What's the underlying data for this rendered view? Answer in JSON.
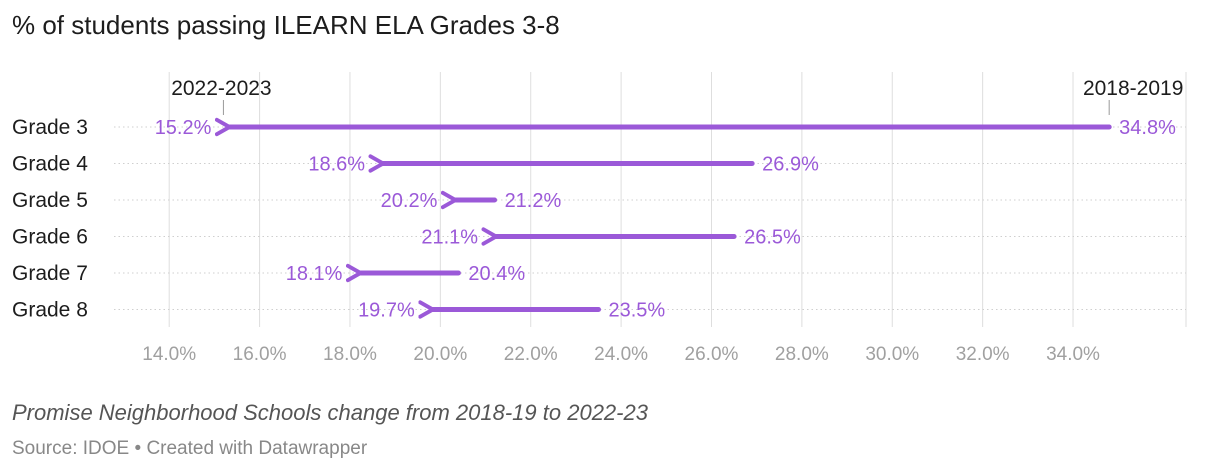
{
  "title": "% of students passing ILEARN ELA Grades 3-8",
  "subtitle": "Promise Neighborhood Schools change from 2018-19 to 2022-23",
  "source": {
    "label": "Source: IDOE",
    "separator": "•",
    "credit": "Created with Datawrapper"
  },
  "colors": {
    "arrow": "#9b59d8",
    "grid": "#dedede",
    "tick_label": "#a0a0a0",
    "row_label": "#1d1d1d"
  },
  "chart_data": {
    "type": "arrow-dot",
    "title": "% of students passing ILEARN ELA Grades 3-8",
    "series_start_label": "2018-2019",
    "series_end_label": "2022-2023",
    "categories": [
      "Grade 3",
      "Grade 4",
      "Grade 5",
      "Grade 6",
      "Grade 7",
      "Grade 8"
    ],
    "series": [
      {
        "name": "2018-2019",
        "values": [
          34.8,
          26.9,
          21.2,
          26.5,
          20.4,
          23.5
        ]
      },
      {
        "name": "2022-2023",
        "values": [
          15.2,
          18.6,
          20.2,
          21.1,
          18.1,
          19.7
        ]
      }
    ],
    "value_labels_start": [
      "34.8%",
      "26.9%",
      "21.2%",
      "26.5%",
      "20.4%",
      "23.5%"
    ],
    "value_labels_end": [
      "15.2%",
      "18.6%",
      "20.2%",
      "21.1%",
      "18.1%",
      "19.7%"
    ],
    "x_ticks": [
      14,
      16,
      18,
      20,
      22,
      24,
      26,
      28,
      30,
      32,
      34
    ],
    "x_tick_labels": [
      "14.0%",
      "16.0%",
      "18.0%",
      "20.0%",
      "22.0%",
      "24.0%",
      "26.0%",
      "28.0%",
      "30.0%",
      "32.0%",
      "34.0%"
    ],
    "xlim": [
      13.0,
      36.5
    ],
    "xlabel": "",
    "ylabel": ""
  }
}
